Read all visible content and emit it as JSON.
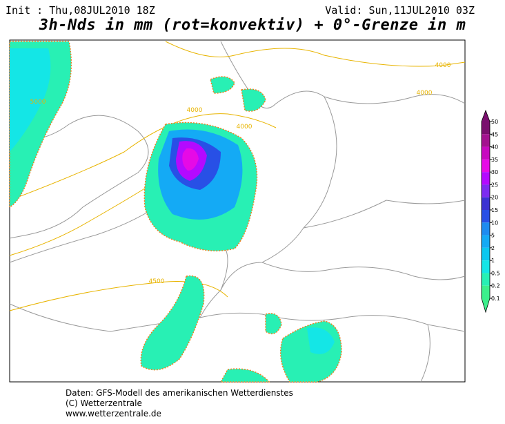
{
  "header": {
    "init": "Init : Thu,08JUL2010 18Z",
    "valid": "Valid: Sun,11JUL2010 03Z",
    "title": "3h-Nds in mm (rot=konvektiv) + 0°-Grenze in m"
  },
  "colorbar": {
    "ticks": [
      "50",
      "45",
      "40",
      "35",
      "30",
      "25",
      "20",
      "15",
      "10",
      "5",
      "2",
      "1",
      "0.5",
      "0.2",
      "0.1"
    ],
    "colors": [
      "#7a0f6e",
      "#a3128f",
      "#c80ac0",
      "#e60ae6",
      "#b40aff",
      "#7d2cf0",
      "#3c32d2",
      "#2850e6",
      "#1e8cf0",
      "#14aaf5",
      "#0ac8f0",
      "#14e6e6",
      "#28f0b4",
      "#3cf08c"
    ]
  },
  "contours": [
    "4000",
    "4000",
    "4000",
    "4000",
    "5000",
    "4500"
  ],
  "footer": [
    "Daten: GFS-Modell des amerikanischen Wetterdienstes",
    "(C) Wetterzentrale",
    "www.wetterzentrale.de"
  ]
}
